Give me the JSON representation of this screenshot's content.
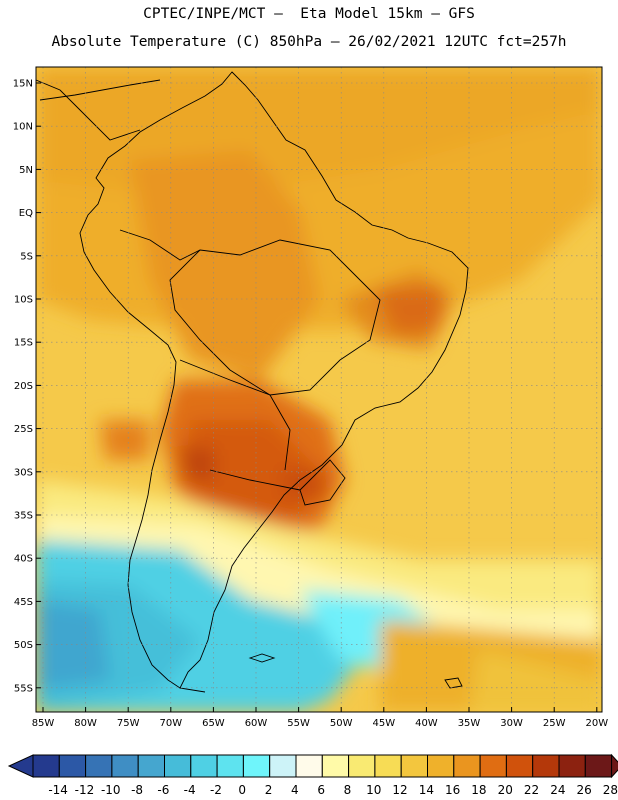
{
  "header": {
    "line1": "CPTEC/INPE/MCT –  Eta Model 15km – GFS",
    "line2": "Absolute Temperature (C) 850hPa – 26/02/2021 12UTC fct=257h"
  },
  "map": {
    "region": "South America",
    "lat_labels": [
      "15N",
      "10N",
      "5N",
      "EQ",
      "5S",
      "10S",
      "15S",
      "20S",
      "25S",
      "30S",
      "35S",
      "40S",
      "45S",
      "50S",
      "55S"
    ],
    "lon_labels": [
      "85W",
      "80W",
      "75W",
      "70W",
      "65W",
      "60W",
      "55W",
      "50W",
      "45W",
      "40W",
      "35W",
      "30W",
      "25W",
      "20W"
    ]
  },
  "colorbar": {
    "labels": [
      "-14",
      "-12",
      "-10",
      "-8",
      "-6",
      "-4",
      "-2",
      "0",
      "2",
      "4",
      "6",
      "8",
      "10",
      "12",
      "14",
      "16",
      "18",
      "20",
      "22",
      "24",
      "26",
      "28"
    ],
    "colors": [
      "#243a8e",
      "#2c58a6",
      "#3673b5",
      "#3f8ec4",
      "#45a6cf",
      "#46bcd9",
      "#4fd0e4",
      "#5ee3ef",
      "#6ff5fb",
      "#cdf3f8",
      "#fffbea",
      "#fffaa8",
      "#f9ea72",
      "#f7dc55",
      "#f3c63e",
      "#efb12b",
      "#ea951f",
      "#e06d12",
      "#d0520c",
      "#b4380a",
      "#8c2210",
      "#6c1818"
    ]
  }
}
